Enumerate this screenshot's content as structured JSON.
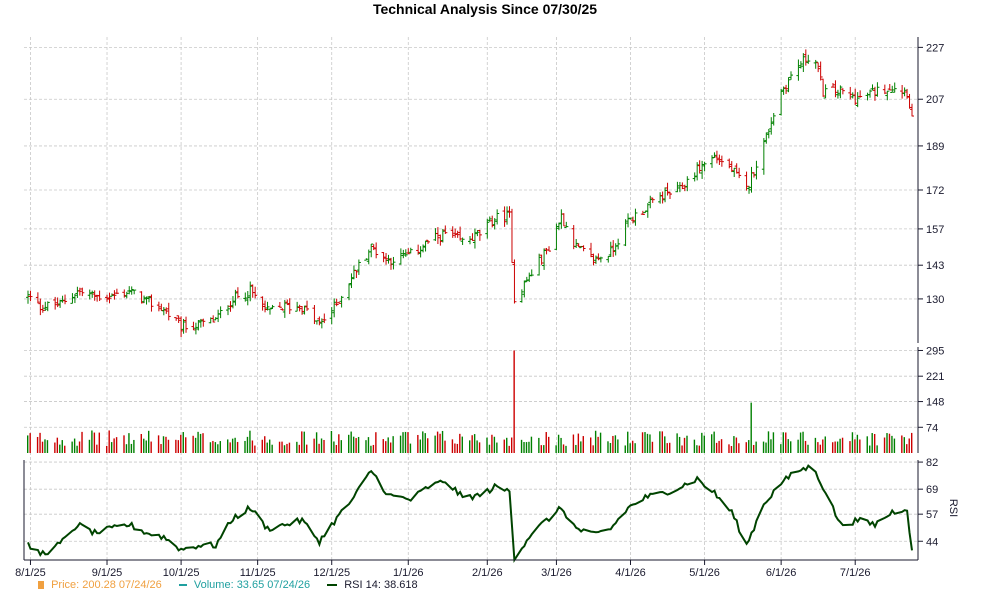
{
  "chart_data": [
    {
      "type": "ohlc",
      "title": "Technical Analysis Since 07/30/25",
      "ylim": [
        113,
        231
      ],
      "y_ticks": [
        130,
        143,
        157,
        172,
        189,
        207,
        227
      ],
      "x_tick_labels": [
        "8/1/25",
        "9/1/25",
        "10/1/25",
        "11/1/25",
        "12/1/25",
        "1/1/26",
        "2/1/26",
        "3/1/26",
        "4/1/26",
        "5/1/26",
        "6/1/26",
        "7/1/26"
      ],
      "price_keyframes": [
        [
          "2025-07-31",
          131
        ],
        [
          "2025-08-05",
          127
        ],
        [
          "2025-08-13",
          128
        ],
        [
          "2025-08-20",
          133
        ],
        [
          "2025-08-27",
          131
        ],
        [
          "2025-09-03",
          131
        ],
        [
          "2025-09-10",
          133
        ],
        [
          "2025-09-17",
          129
        ],
        [
          "2025-09-24",
          126
        ],
        [
          "2025-10-01",
          119
        ],
        [
          "2025-10-08",
          120
        ],
        [
          "2025-10-15",
          122
        ],
        [
          "2025-10-22",
          130
        ],
        [
          "2025-10-29",
          133
        ],
        [
          "2025-11-05",
          125
        ],
        [
          "2025-11-12",
          127
        ],
        [
          "2025-11-19",
          127
        ],
        [
          "2025-11-26",
          120
        ],
        [
          "2025-12-03",
          128
        ],
        [
          "2025-12-10",
          140
        ],
        [
          "2025-12-17",
          150
        ],
        [
          "2025-12-24",
          145
        ],
        [
          "2026-01-02",
          147
        ],
        [
          "2026-01-09",
          152
        ],
        [
          "2026-01-16",
          155
        ],
        [
          "2026-01-23",
          152
        ],
        [
          "2026-01-30",
          155
        ],
        [
          "2026-02-05",
          161
        ],
        [
          "2026-02-11",
          162
        ],
        [
          "2026-02-13",
          130
        ],
        [
          "2026-02-20",
          140
        ],
        [
          "2026-02-27",
          150
        ],
        [
          "2026-03-04",
          162
        ],
        [
          "2026-03-10",
          150
        ],
        [
          "2026-03-17",
          145
        ],
        [
          "2026-03-24",
          148
        ],
        [
          "2026-03-31",
          160
        ],
        [
          "2026-04-07",
          165
        ],
        [
          "2026-04-14",
          170
        ],
        [
          "2026-04-21",
          172
        ],
        [
          "2026-04-28",
          180
        ],
        [
          "2026-05-05",
          185
        ],
        [
          "2026-05-12",
          180
        ],
        [
          "2026-05-18",
          172
        ],
        [
          "2026-05-25",
          190
        ],
        [
          "2026-06-01",
          210
        ],
        [
          "2026-06-08",
          220
        ],
        [
          "2026-06-14",
          225
        ],
        [
          "2026-06-18",
          210
        ],
        [
          "2026-06-25",
          210
        ],
        [
          "2026-07-02",
          207
        ],
        [
          "2026-07-09",
          210
        ],
        [
          "2026-07-16",
          212
        ],
        [
          "2026-07-22",
          210
        ],
        [
          "2026-07-24",
          200
        ]
      ],
      "rsi": {
        "ylim": [
          35,
          83
        ],
        "y_ticks": [
          44,
          57,
          69,
          82
        ],
        "ylabel": "RSI",
        "keyframes": [
          [
            "2025-07-31",
            42
          ],
          [
            "2025-08-05",
            38
          ],
          [
            "2025-08-10",
            40
          ],
          [
            "2025-08-15",
            45
          ],
          [
            "2025-08-20",
            52
          ],
          [
            "2025-08-27",
            48
          ],
          [
            "2025-09-03",
            50
          ],
          [
            "2025-09-10",
            52
          ],
          [
            "2025-09-17",
            48
          ],
          [
            "2025-09-24",
            46
          ],
          [
            "2025-10-01",
            40
          ],
          [
            "2025-10-08",
            42
          ],
          [
            "2025-10-15",
            42
          ],
          [
            "2025-10-22",
            55
          ],
          [
            "2025-10-29",
            60
          ],
          [
            "2025-11-05",
            50
          ],
          [
            "2025-11-12",
            52
          ],
          [
            "2025-11-19",
            54
          ],
          [
            "2025-11-26",
            44
          ],
          [
            "2025-12-03",
            55
          ],
          [
            "2025-12-10",
            65
          ],
          [
            "2025-12-17",
            78
          ],
          [
            "2025-12-24",
            66
          ],
          [
            "2026-01-02",
            64
          ],
          [
            "2026-01-09",
            70
          ],
          [
            "2026-01-16",
            73
          ],
          [
            "2026-01-23",
            65
          ],
          [
            "2026-01-30",
            66
          ],
          [
            "2026-02-05",
            70
          ],
          [
            "2026-02-11",
            68
          ],
          [
            "2026-02-13",
            36
          ],
          [
            "2026-02-20",
            48
          ],
          [
            "2026-02-27",
            55
          ],
          [
            "2026-03-04",
            60
          ],
          [
            "2026-03-10",
            50
          ],
          [
            "2026-03-17",
            47
          ],
          [
            "2026-03-24",
            50
          ],
          [
            "2026-03-31",
            60
          ],
          [
            "2026-04-07",
            65
          ],
          [
            "2026-04-14",
            67
          ],
          [
            "2026-04-21",
            70
          ],
          [
            "2026-04-28",
            74
          ],
          [
            "2026-05-05",
            67
          ],
          [
            "2026-05-12",
            58
          ],
          [
            "2026-05-18",
            42
          ],
          [
            "2026-05-25",
            62
          ],
          [
            "2026-06-01",
            72
          ],
          [
            "2026-06-08",
            78
          ],
          [
            "2026-06-14",
            80
          ],
          [
            "2026-06-18",
            70
          ],
          [
            "2026-06-25",
            52
          ],
          [
            "2026-07-02",
            54
          ],
          [
            "2026-07-09",
            52
          ],
          [
            "2026-07-16",
            58
          ],
          [
            "2026-07-22",
            60
          ],
          [
            "2026-07-24",
            38.6
          ]
        ]
      },
      "volume": {
        "ylim": [
          0,
          305
        ],
        "y_ticks": [
          74,
          148,
          221,
          295
        ],
        "spikes": [
          [
            "2026-02-13",
            295
          ],
          [
            "2026-05-20",
            145
          ]
        ]
      },
      "legend": [
        {
          "label": "Price: 200.28  07/24/26",
          "color": "#f0a040",
          "shape": "square"
        },
        {
          "label": "Volume: 33.65  07/24/26",
          "color": "#20a0a0",
          "shape": "dash"
        },
        {
          "label": "RSI 14: 38.618",
          "color": "#004400",
          "shape": "line"
        }
      ],
      "colors": {
        "up": "#008000",
        "down": "#cc0000",
        "rsi": "#004400",
        "axis": "#1a1a2e",
        "grid": "#c8c8c8"
      }
    }
  ]
}
